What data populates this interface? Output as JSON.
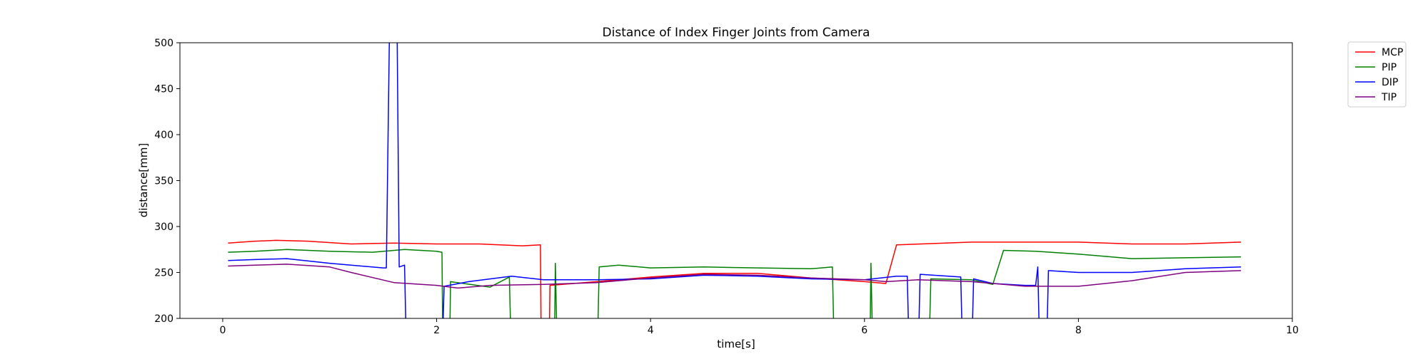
{
  "chart_data": {
    "type": "line",
    "title": "Distance of Index Finger Joints from Camera",
    "xlabel": "time[s]",
    "ylabel": "distance[mm]",
    "xlim": [
      -0.4,
      10
    ],
    "ylim": [
      200,
      500
    ],
    "xticks": [
      0,
      2,
      4,
      6,
      8,
      10
    ],
    "yticks": [
      200,
      250,
      300,
      350,
      400,
      450,
      500
    ],
    "grid": false,
    "legend_position": "outside top-right",
    "series": [
      {
        "name": "MCP",
        "color": "#ff0000",
        "points": [
          [
            0.05,
            282
          ],
          [
            0.3,
            284
          ],
          [
            0.5,
            285
          ],
          [
            0.8,
            284
          ],
          [
            1.2,
            281
          ],
          [
            1.6,
            282
          ],
          [
            2.0,
            281
          ],
          [
            2.4,
            281
          ],
          [
            2.8,
            279
          ],
          [
            2.97,
            280
          ],
          [
            2.98,
            150
          ],
          [
            3.05,
            150
          ],
          [
            3.06,
            236
          ],
          [
            3.5,
            240
          ],
          [
            4.0,
            245
          ],
          [
            4.5,
            249
          ],
          [
            5.0,
            249
          ],
          [
            5.5,
            244
          ],
          [
            6.0,
            240
          ],
          [
            6.2,
            238
          ],
          [
            6.3,
            280
          ],
          [
            7.0,
            283
          ],
          [
            7.5,
            283
          ],
          [
            8.0,
            283
          ],
          [
            8.5,
            281
          ],
          [
            9.0,
            281
          ],
          [
            9.52,
            283
          ]
        ]
      },
      {
        "name": "PIP",
        "color": "#008000",
        "points": [
          [
            0.05,
            272
          ],
          [
            0.3,
            273
          ],
          [
            0.6,
            275
          ],
          [
            1.0,
            273
          ],
          [
            1.4,
            272
          ],
          [
            1.7,
            275
          ],
          [
            2.0,
            273
          ],
          [
            2.05,
            272
          ],
          [
            2.06,
            150
          ],
          [
            2.12,
            150
          ],
          [
            2.13,
            240
          ],
          [
            2.5,
            234
          ],
          [
            2.68,
            245
          ],
          [
            2.7,
            150
          ],
          [
            3.1,
            150
          ],
          [
            3.11,
            260
          ],
          [
            3.13,
            150
          ],
          [
            3.5,
            150
          ],
          [
            3.52,
            256
          ],
          [
            3.7,
            258
          ],
          [
            4.0,
            255
          ],
          [
            4.5,
            256
          ],
          [
            5.0,
            255
          ],
          [
            5.5,
            254
          ],
          [
            5.7,
            256
          ],
          [
            5.72,
            150
          ],
          [
            6.05,
            150
          ],
          [
            6.06,
            260
          ],
          [
            6.08,
            150
          ],
          [
            6.6,
            150
          ],
          [
            6.62,
            243
          ],
          [
            7.0,
            242
          ],
          [
            7.2,
            237
          ],
          [
            7.3,
            274
          ],
          [
            7.6,
            273
          ],
          [
            8.0,
            270
          ],
          [
            8.5,
            265
          ],
          [
            9.0,
            266
          ],
          [
            9.52,
            267
          ]
        ]
      },
      {
        "name": "DIP",
        "color": "#0000ff",
        "points": [
          [
            0.05,
            263
          ],
          [
            0.3,
            264
          ],
          [
            0.6,
            265
          ],
          [
            1.0,
            260
          ],
          [
            1.5,
            255
          ],
          [
            1.53,
            255
          ],
          [
            1.56,
            520
          ],
          [
            1.63,
            520
          ],
          [
            1.65,
            256
          ],
          [
            1.7,
            258
          ],
          [
            1.72,
            150
          ],
          [
            2.05,
            150
          ],
          [
            2.07,
            235
          ],
          [
            2.3,
            240
          ],
          [
            2.7,
            246
          ],
          [
            3.0,
            242
          ],
          [
            3.5,
            242
          ],
          [
            4.0,
            243
          ],
          [
            4.5,
            247
          ],
          [
            5.0,
            246
          ],
          [
            5.5,
            243
          ],
          [
            6.0,
            242
          ],
          [
            6.3,
            246
          ],
          [
            6.4,
            246
          ],
          [
            6.42,
            150
          ],
          [
            6.5,
            150
          ],
          [
            6.52,
            248
          ],
          [
            6.9,
            245
          ],
          [
            6.92,
            150
          ],
          [
            7.0,
            150
          ],
          [
            7.02,
            243
          ],
          [
            7.2,
            238
          ],
          [
            7.5,
            236
          ],
          [
            7.6,
            236
          ],
          [
            7.62,
            256
          ],
          [
            7.64,
            150
          ],
          [
            7.7,
            150
          ],
          [
            7.72,
            252
          ],
          [
            8.0,
            250
          ],
          [
            8.5,
            250
          ],
          [
            9.0,
            254
          ],
          [
            9.52,
            256
          ]
        ]
      },
      {
        "name": "TIP",
        "color": "#800080",
        "points": [
          [
            0.05,
            257
          ],
          [
            0.3,
            258
          ],
          [
            0.6,
            259
          ],
          [
            1.0,
            256
          ],
          [
            1.2,
            250
          ],
          [
            1.6,
            239
          ],
          [
            2.0,
            236
          ],
          [
            2.2,
            233
          ],
          [
            2.5,
            236
          ],
          [
            3.0,
            237
          ],
          [
            3.5,
            239
          ],
          [
            4.0,
            244
          ],
          [
            4.5,
            248
          ],
          [
            5.0,
            247
          ],
          [
            5.5,
            244
          ],
          [
            6.0,
            242
          ],
          [
            6.2,
            240
          ],
          [
            6.5,
            242
          ],
          [
            7.0,
            240
          ],
          [
            7.5,
            235
          ],
          [
            8.0,
            235
          ],
          [
            8.5,
            241
          ],
          [
            9.0,
            250
          ],
          [
            9.52,
            252
          ]
        ]
      }
    ]
  }
}
